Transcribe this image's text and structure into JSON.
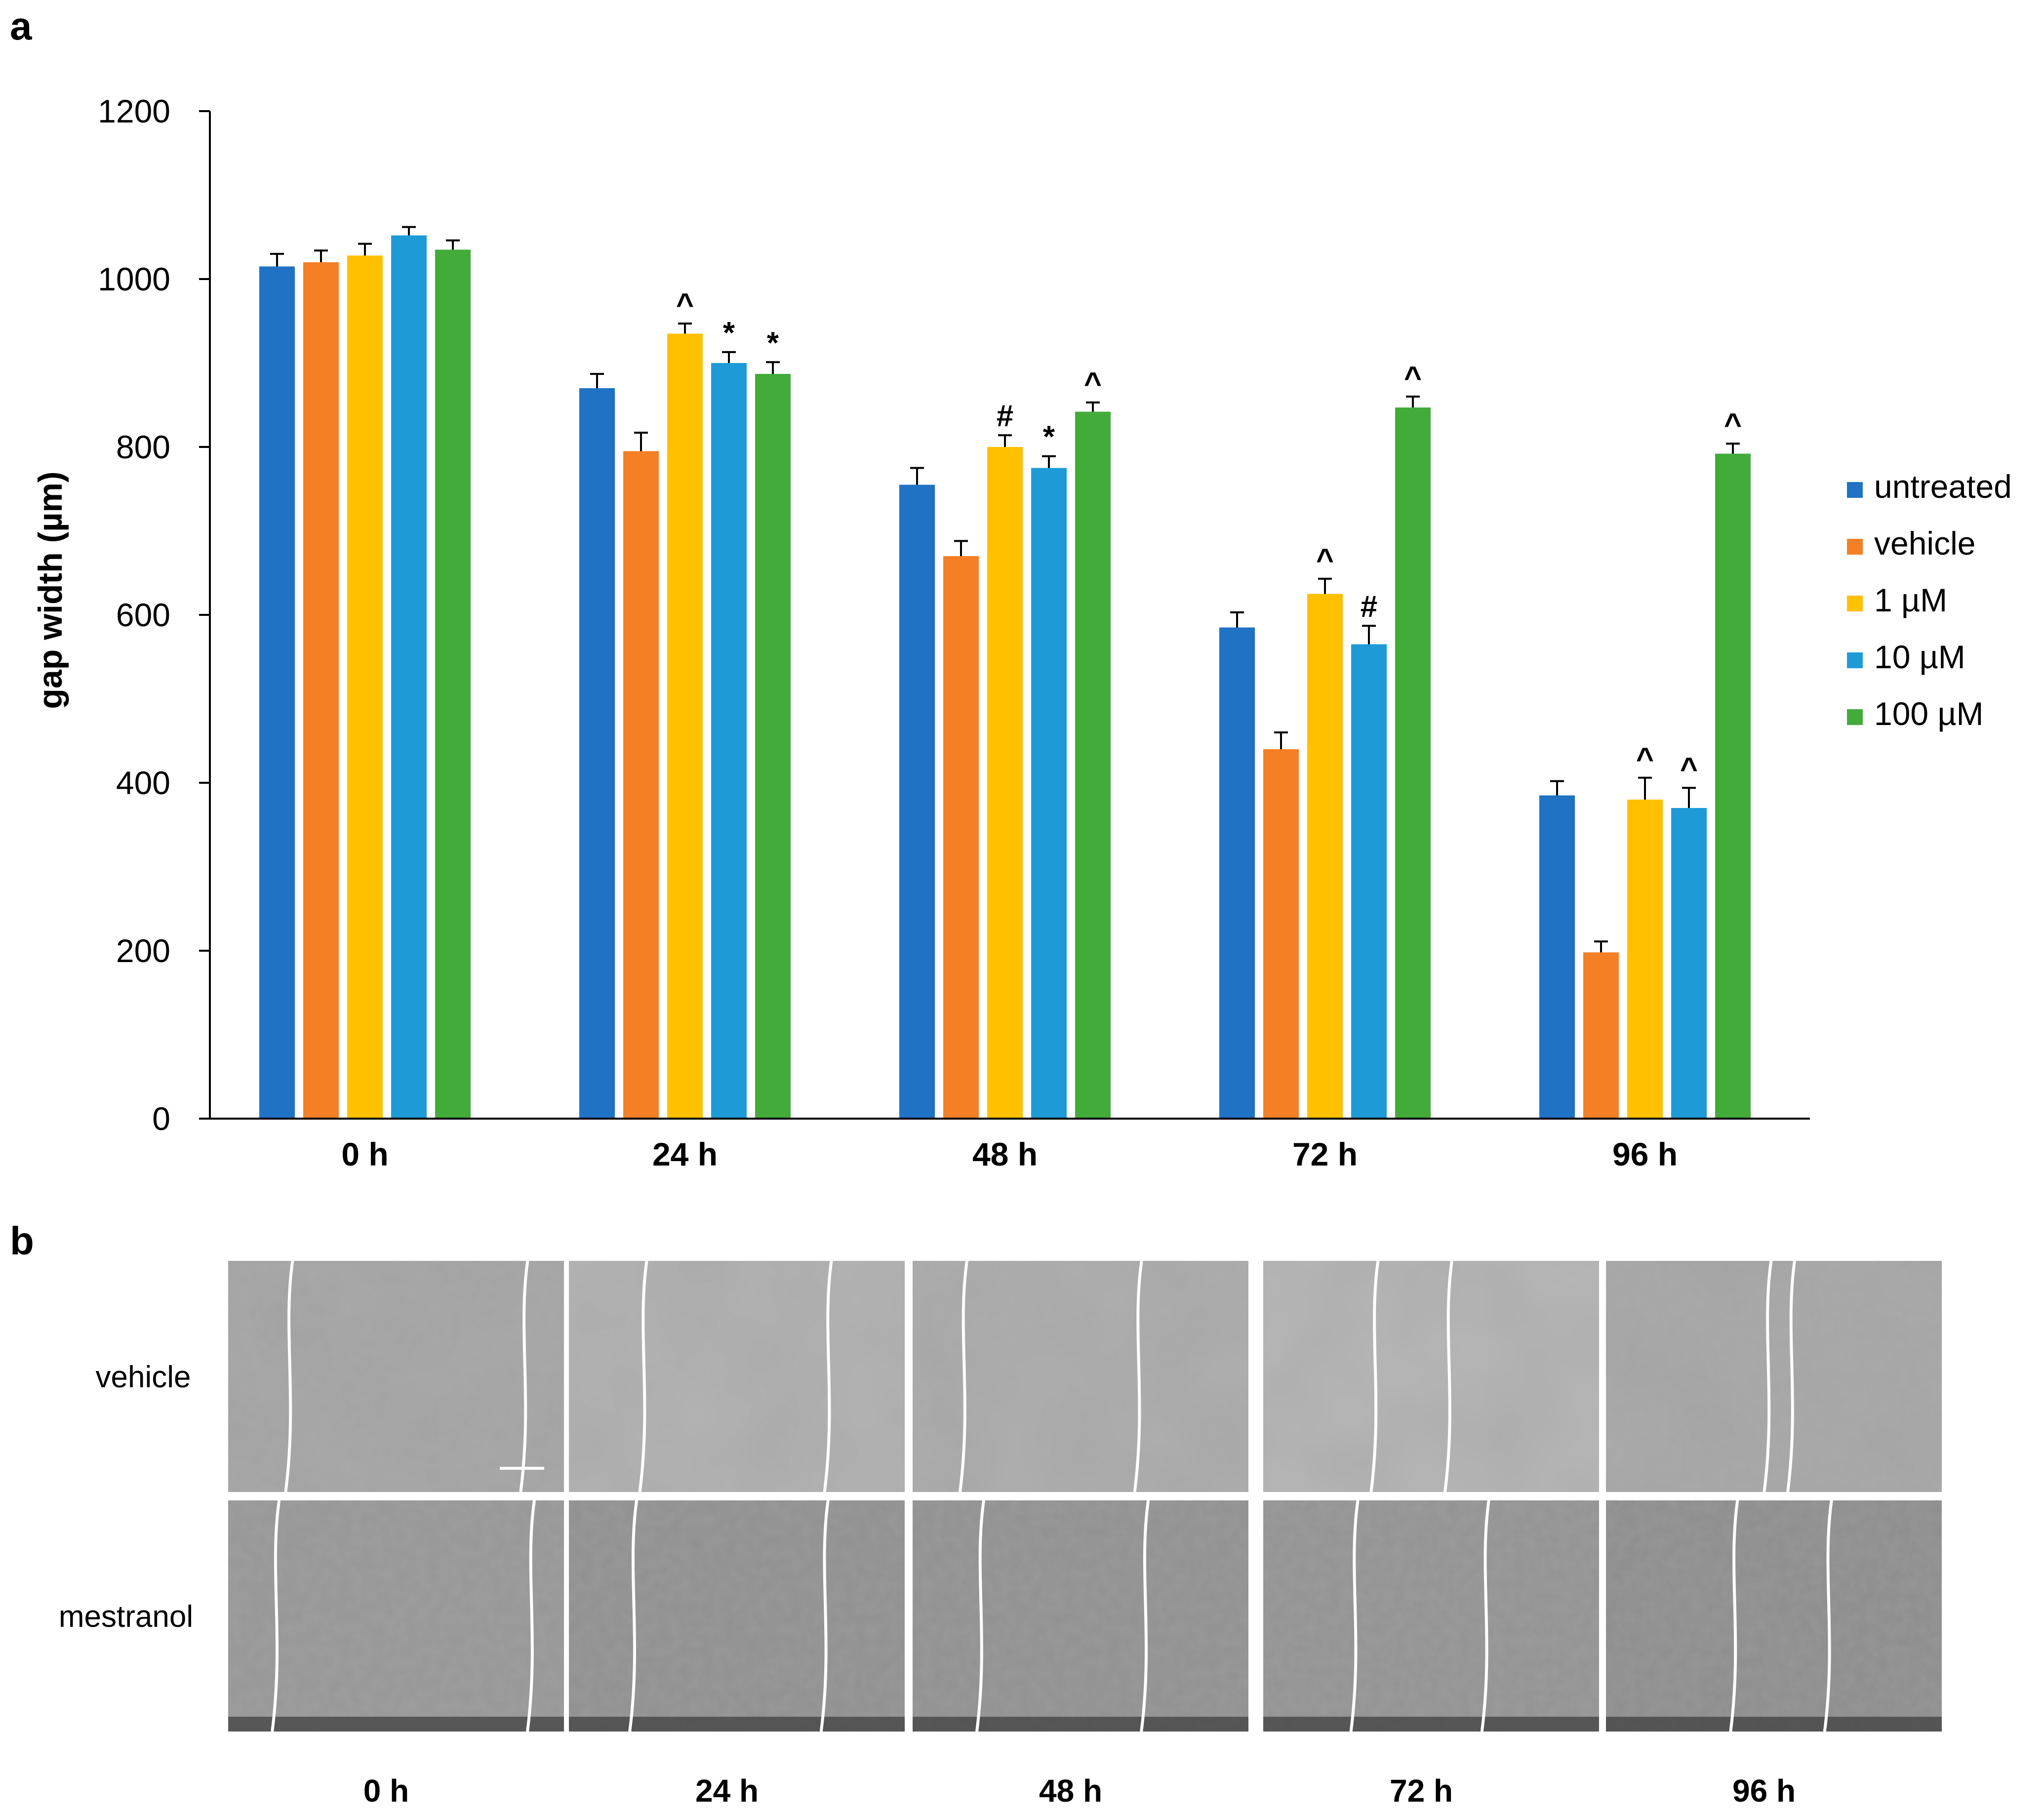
{
  "panel_a_label": "a",
  "panel_b_label": "b",
  "chart_data": {
    "type": "bar",
    "title": "",
    "xlabel": "",
    "ylabel": "gap width (µm)",
    "ylim": [
      0,
      1200
    ],
    "yticks": [
      "0",
      "200",
      "400",
      "600",
      "800",
      "1000",
      "1200"
    ],
    "categories": [
      "0 h",
      "24 h",
      "48 h",
      "72 h",
      "96 h"
    ],
    "legend_position": "right",
    "series": [
      {
        "name": "untreated",
        "color": "#1f72c4",
        "values": [
          1015,
          870,
          755,
          585,
          385
        ],
        "errors": [
          15,
          17,
          20,
          18,
          17
        ],
        "sig": [
          "",
          "",
          "",
          "",
          ""
        ]
      },
      {
        "name": "vehicle",
        "color": "#f47f24",
        "values": [
          1020,
          795,
          670,
          440,
          198
        ],
        "errors": [
          14,
          22,
          18,
          20,
          13
        ],
        "sig": [
          "",
          "",
          "",
          "",
          ""
        ]
      },
      {
        "name": "1 µM",
        "color": "#ffc000",
        "values": [
          1028,
          935,
          800,
          625,
          380
        ],
        "errors": [
          14,
          12,
          14,
          18,
          26
        ],
        "sig": [
          "",
          "^",
          "#",
          "^",
          "^"
        ]
      },
      {
        "name": "10 µM",
        "color": "#1e9bd7",
        "values": [
          1052,
          900,
          775,
          565,
          370
        ],
        "errors": [
          10,
          13,
          14,
          22,
          24
        ],
        "sig": [
          "",
          "*",
          "*",
          "#",
          "^"
        ]
      },
      {
        "name": "100 µM",
        "color": "#43ab3a",
        "values": [
          1035,
          887,
          842,
          847,
          792
        ],
        "errors": [
          11,
          14,
          11,
          13,
          12
        ],
        "sig": [
          "",
          "*",
          "^",
          "^",
          "^"
        ]
      }
    ]
  },
  "panel_b": {
    "rows": [
      "vehicle",
      "mestranol"
    ],
    "columns": [
      "0 h",
      "24 h",
      "48 h",
      "72 h",
      "96 h"
    ]
  }
}
